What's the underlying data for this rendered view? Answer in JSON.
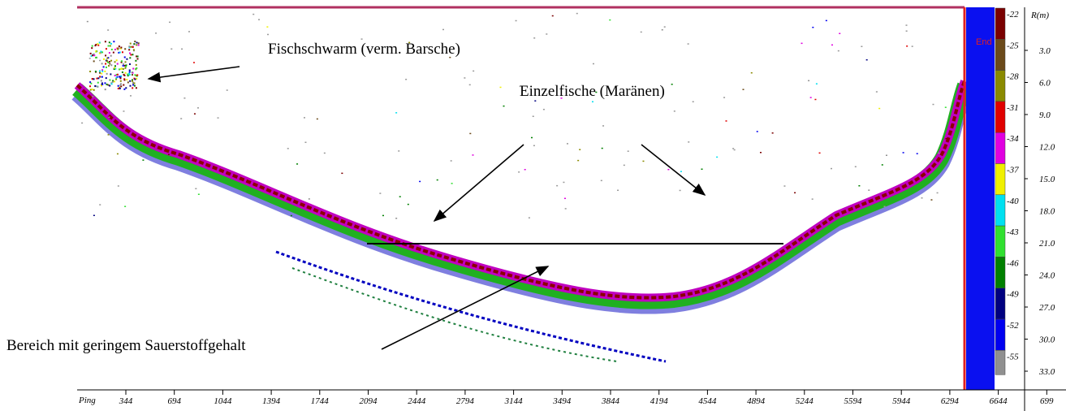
{
  "annotations": [
    "Fischschwarm (verm. Barsche)",
    "Einzelfische (Maränen)",
    "Bereich mit geringem Sauerstoffgehalt"
  ],
  "end_marker": "End",
  "x_axis": {
    "label": "Ping",
    "ticks": [
      "344",
      "694",
      "1044",
      "1394",
      "1744",
      "2094",
      "2444",
      "2794",
      "3144",
      "3494",
      "3844",
      "4194",
      "4544",
      "4894",
      "5244",
      "5594",
      "5944",
      "6294",
      "6644",
      "699"
    ]
  },
  "depth_axis": {
    "label": "R(m)",
    "ticks": [
      "3.0",
      "6.0",
      "9.0",
      "12.0",
      "15.0",
      "18.0",
      "21.0",
      "24.0",
      "27.0",
      "30.0",
      "33.0"
    ]
  },
  "color_scale": {
    "labels": [
      "-22",
      "-25",
      "-28",
      "-31",
      "-34",
      "-37",
      "-40",
      "-43",
      "-46",
      "-49",
      "-52",
      "-55"
    ],
    "colors": [
      "#7a0000",
      "#6b4a1a",
      "#8a8a00",
      "#e00000",
      "#e000e0",
      "#f0f000",
      "#00e0f0",
      "#30e030",
      "#008000",
      "#000080",
      "#0000f0",
      "#909090"
    ]
  }
}
